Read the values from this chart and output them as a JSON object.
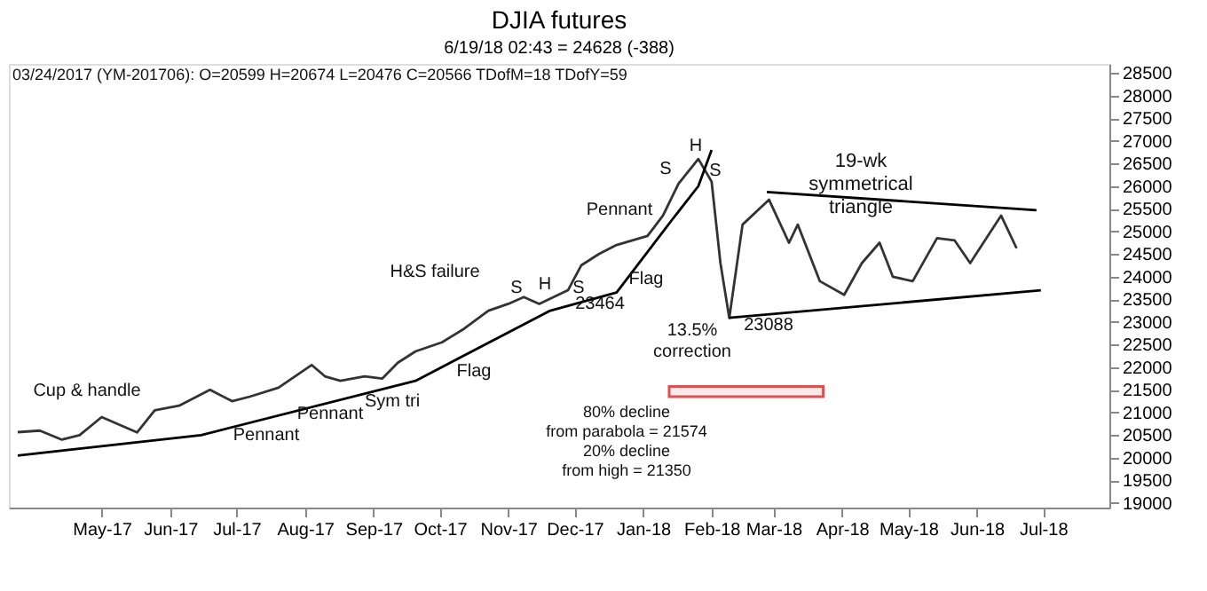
{
  "chart_data": {
    "type": "line",
    "title": "DJIA futures",
    "subtitle": "6/19/18 02:43 = 24628 (-388)",
    "xlim": [
      "2017-03-20",
      "2018-07-31"
    ],
    "xticks": [
      {
        "value": "2017-05-01",
        "label": "May-17"
      },
      {
        "value": "2017-06-01",
        "label": "Jun-17"
      },
      {
        "value": "2017-07-01",
        "label": "Jul-17"
      },
      {
        "value": "2017-08-01",
        "label": "Aug-17"
      },
      {
        "value": "2017-09-01",
        "label": "Sep-17"
      },
      {
        "value": "2017-10-01",
        "label": "Oct-17"
      },
      {
        "value": "2017-11-01",
        "label": "Nov-17"
      },
      {
        "value": "2017-12-01",
        "label": "Dec-17"
      },
      {
        "value": "2018-01-01",
        "label": "Jan-18"
      },
      {
        "value": "2018-02-01",
        "label": "Feb-18"
      },
      {
        "value": "2018-03-01",
        "label": "Mar-18"
      },
      {
        "value": "2018-04-01",
        "label": "Apr-18"
      },
      {
        "value": "2018-05-01",
        "label": "May-18"
      },
      {
        "value": "2018-06-01",
        "label": "Jun-18"
      },
      {
        "value": "2018-07-01",
        "label": "Jul-18"
      }
    ],
    "ylim": [
      18900,
      28700
    ],
    "yticks": [
      19000,
      19500,
      20000,
      20500,
      21000,
      21500,
      22000,
      22500,
      23000,
      23500,
      24000,
      24500,
      25000,
      25500,
      26000,
      26500,
      27000,
      27500,
      28000,
      28500
    ],
    "grid": false,
    "legend": false,
    "marker": "none",
    "line_style": "solid",
    "series": [
      {
        "color": "#333333",
        "x": [
          "2017-03-24",
          "2017-04-03",
          "2017-04-13",
          "2017-04-21",
          "2017-05-01",
          "2017-05-17",
          "2017-05-25",
          "2017-06-05",
          "2017-06-19",
          "2017-06-29",
          "2017-07-07",
          "2017-07-20",
          "2017-08-04",
          "2017-08-10",
          "2017-08-17",
          "2017-08-28",
          "2017-09-05",
          "2017-09-12",
          "2017-09-20",
          "2017-10-02",
          "2017-10-12",
          "2017-10-23",
          "2017-11-01",
          "2017-11-08",
          "2017-11-15",
          "2017-11-28",
          "2017-12-04",
          "2017-12-12",
          "2017-12-20",
          "2018-01-03",
          "2018-01-10",
          "2018-01-17",
          "2018-01-26",
          "2018-02-01",
          "2018-02-05",
          "2018-02-09",
          "2018-02-15",
          "2018-02-27",
          "2018-03-08",
          "2018-03-12",
          "2018-03-22",
          "2018-04-02",
          "2018-04-10",
          "2018-04-18",
          "2018-04-24",
          "2018-05-03",
          "2018-05-14",
          "2018-05-22",
          "2018-05-29",
          "2018-06-12",
          "2018-06-19"
        ],
        "values": [
          20566,
          20600,
          20400,
          20500,
          20900,
          20560,
          21050,
          21150,
          21500,
          21250,
          21350,
          21550,
          22050,
          21800,
          21700,
          21800,
          21750,
          22100,
          22350,
          22550,
          22850,
          23250,
          23400,
          23550,
          23400,
          23700,
          24250,
          24500,
          24700,
          24900,
          25350,
          26050,
          26600,
          26100,
          24300,
          23088,
          25150,
          25700,
          24750,
          25150,
          23900,
          23600,
          24300,
          24750,
          24000,
          23900,
          24850,
          24800,
          24300,
          25350,
          24628
        ]
      },
      {
        "color": "#000000",
        "x": [
          "2017-03-24",
          "2017-06-15",
          "2017-09-20",
          "2017-11-20",
          "2017-12-20",
          "2018-01-14",
          "2018-01-26",
          "2018-02-01"
        ],
        "values": [
          20050,
          20500,
          21700,
          23250,
          23650,
          25250,
          26000,
          26800
        ]
      },
      {
        "color": "#000000",
        "x": [
          "2018-02-26",
          "2018-06-28"
        ],
        "values": [
          25870,
          25470
        ]
      },
      {
        "color": "#000000",
        "x": [
          "2018-02-09",
          "2018-06-30"
        ],
        "values": [
          23090,
          23700
        ]
      }
    ],
    "bands": [
      {
        "axis": "y",
        "from": 21350,
        "to": 21574,
        "color": "#e05050"
      }
    ],
    "annotations": [
      "03/24/2017 (YM-201706): O=20599 H=20674 L=20476 C=20566 TDofM=18 TDofY=59",
      "Cup & handle",
      "Pennant",
      "Pennant",
      "Sym tri",
      "Flag",
      "H&S failure",
      "S",
      "H",
      "S",
      "23464",
      "Pennant",
      "Flag",
      "S",
      "H",
      "S",
      "19-wk\nsymmetrical\ntriangle",
      "13.5%\ncorrection",
      "23088",
      "80% decline\nfrom parabola = 21574\n20% decline\nfrom high = 21350"
    ]
  }
}
